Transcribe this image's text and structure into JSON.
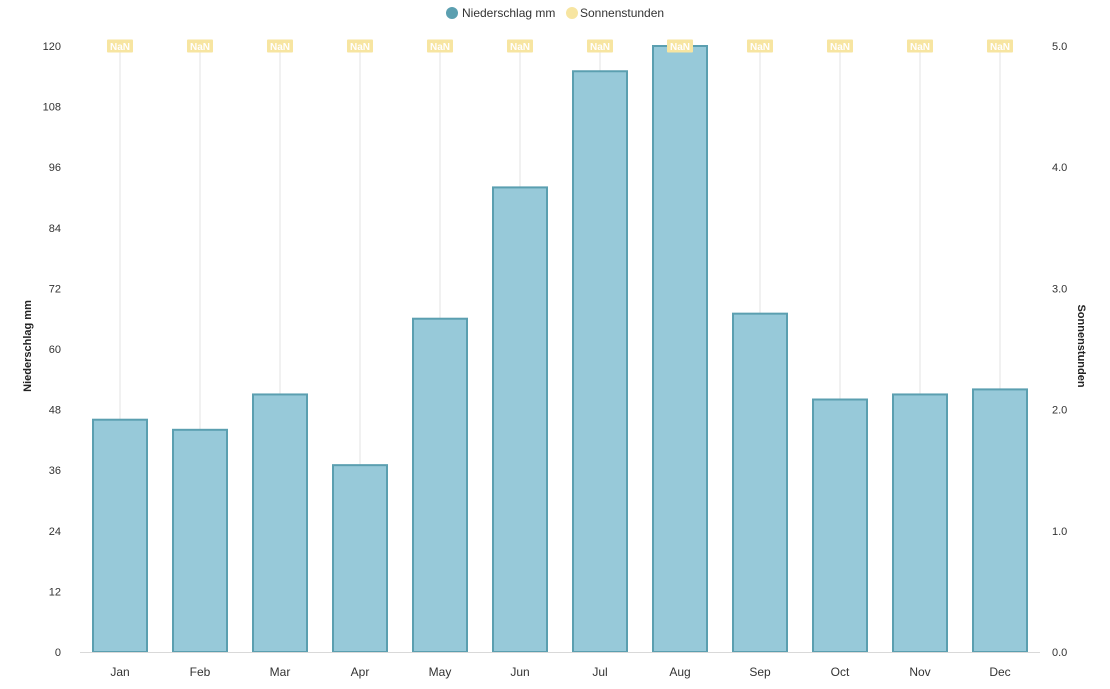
{
  "colors": {
    "bar_fill": "#97c9d9",
    "bar_stroke": "#5b9fb0",
    "sun": "#f7e5a1",
    "grid": "#e3e3e3",
    "baseline": "#d9d9d9"
  },
  "legend": {
    "precip_label": "Niederschlag mm",
    "sun_label": "Sonnenstunden"
  },
  "chart_data": {
    "type": "bar",
    "categories": [
      "Jan",
      "Feb",
      "Mar",
      "Apr",
      "May",
      "Jun",
      "Jul",
      "Aug",
      "Sep",
      "Oct",
      "Nov",
      "Dec"
    ],
    "series": [
      {
        "name": "Niederschlag mm",
        "axis": "left",
        "values": [
          46,
          44,
          51,
          37,
          66,
          92,
          115,
          120,
          67,
          50,
          51,
          52
        ]
      },
      {
        "name": "Sonnenstunden",
        "axis": "right",
        "values": [
          null,
          null,
          null,
          null,
          null,
          null,
          null,
          null,
          null,
          null,
          null,
          null
        ],
        "data_labels": [
          "NaN",
          "NaN",
          "NaN",
          "NaN",
          "NaN",
          "NaN",
          "NaN",
          "NaN",
          "NaN",
          "NaN",
          "NaN",
          "NaN"
        ]
      }
    ],
    "y_left": {
      "label": "Niederschlag mm",
      "range": [
        0,
        120
      ],
      "ticks": [
        "0",
        "12",
        "24",
        "36",
        "48",
        "60",
        "72",
        "84",
        "96",
        "108",
        "120"
      ]
    },
    "y_right": {
      "label": "Sonnenstunden",
      "range": [
        0,
        5
      ],
      "ticks": [
        "0.0",
        "1.0",
        "2.0",
        "3.0",
        "4.0",
        "5.0"
      ]
    },
    "legend_position": "top-center",
    "grid": "vertical"
  }
}
